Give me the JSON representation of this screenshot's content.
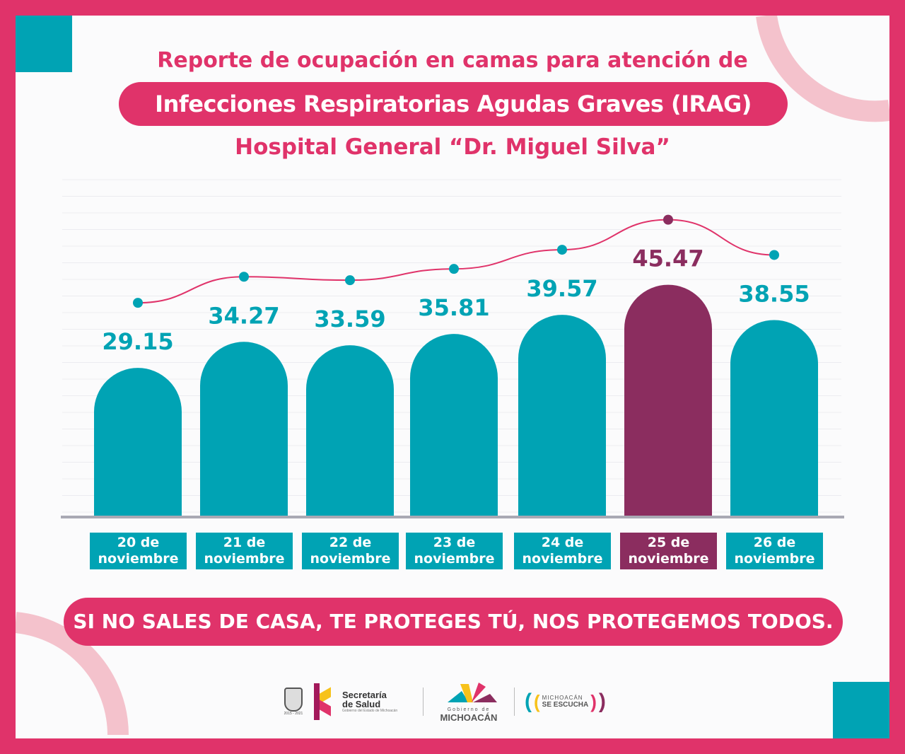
{
  "header": {
    "line1": "Reporte de ocupación en camas para atención de",
    "line2": "Infecciones Respiratorias Agudas Graves (IRAG)",
    "line3": "Hospital General “Dr. Miguel Silva”"
  },
  "chart_data": {
    "type": "bar",
    "categories": [
      "20 de noviembre",
      "21 de noviembre",
      "22 de noviembre",
      "23 de noviembre",
      "24 de noviembre",
      "25 de noviembre",
      "26 de noviembre"
    ],
    "values": [
      29.15,
      34.27,
      33.59,
      35.81,
      39.57,
      45.47,
      38.55
    ],
    "value_labels": [
      "29.15",
      "34.27",
      "33.59",
      "35.81",
      "39.57",
      "45.47",
      "38.55"
    ],
    "highlight_index": 5,
    "trend_line": true,
    "grid": true,
    "colors": {
      "bar": "#00a3b4",
      "highlight": "#8b2d5f",
      "line": "#e0336a"
    }
  },
  "footer": {
    "slogan": "SI NO SALES DE CASA, TE PROTEGES TÚ, NOS PROTEGEMOS TODOS.",
    "logos": {
      "salud_title": "Secretaría de Salud",
      "salud_sub": "Gobierno del Estado de Michoacán",
      "years": "2015 - 2021",
      "gob_small": "Gobierno de",
      "gob_big": "MICHOACÁN",
      "escucha_1": "MICHOACÁN",
      "escucha_2": "SE ESCUCHA"
    }
  },
  "colors": {
    "primary": "#e0336a",
    "teal": "#00a3b4",
    "purple": "#8b2d5f"
  }
}
